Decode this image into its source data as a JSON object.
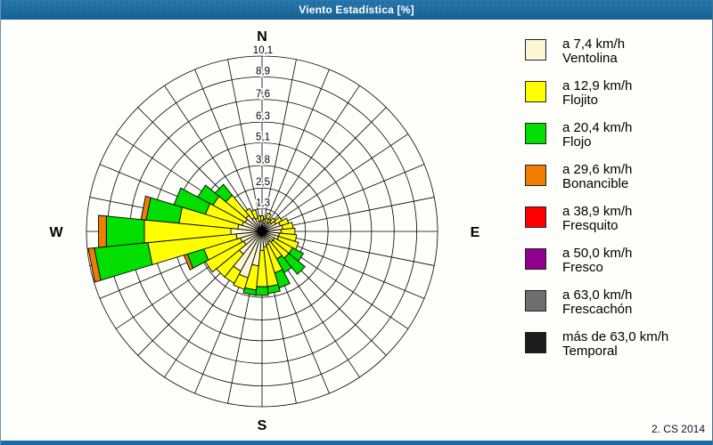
{
  "window": {
    "title": "Viento Estadística [%]"
  },
  "credit": "2. CS 2014",
  "compass": {
    "north": "N",
    "east": "E",
    "south": "S",
    "west": "W"
  },
  "legend": {
    "items": [
      {
        "speed": "a 7,4 km/h",
        "name": "Ventolina",
        "color": "#fcf6d4"
      },
      {
        "speed": "a 12,9 km/h",
        "name": "Flojito",
        "color": "#ffff00"
      },
      {
        "speed": "a 20,4 km/h",
        "name": "Flojo",
        "color": "#00df00"
      },
      {
        "speed": "a 29,6 km/h",
        "name": "Bonancible",
        "color": "#ef7d00"
      },
      {
        "speed": "a 38,9 km/h",
        "name": "Fresquito",
        "color": "#ff0000"
      },
      {
        "speed": "a 50,0 km/h",
        "name": "Fresco",
        "color": "#90008f"
      },
      {
        "speed": "a 63,0 km/h",
        "name": "Frescachón",
        "color": "#6e6e6e"
      },
      {
        "speed": "más de 63,0 km/h",
        "name": "Temporal",
        "color": "#1c1c1c"
      }
    ]
  },
  "chart_data": {
    "type": "wind-rose",
    "title": "Viento Estadística [%]",
    "units": "%",
    "sector_count": 32,
    "sector_step_deg": 11.25,
    "directions_deg": [
      0,
      11.25,
      22.5,
      33.75,
      45,
      56.25,
      67.5,
      78.75,
      90,
      101.25,
      112.5,
      123.75,
      135,
      146.25,
      157.5,
      168.75,
      180,
      191.25,
      202.5,
      213.75,
      225,
      236.25,
      247.5,
      258.75,
      270,
      281.25,
      292.5,
      303.75,
      315,
      326.25,
      337.5,
      348.75
    ],
    "rings": [
      1.3,
      2.5,
      3.8,
      5.1,
      6.3,
      7.6,
      8.9,
      10.1
    ],
    "ring_labels": [
      "1,3",
      "2,5",
      "3,8",
      "5,1",
      "6,3",
      "7,6",
      "8,9",
      "10,1"
    ],
    "rmax": 10.1,
    "grid": true,
    "legend_position": "right",
    "series": [
      {
        "name": "Ventolina",
        "color": "#fcf6d4",
        "values": [
          0.6,
          0.5,
          0.8,
          0.6,
          0.7,
          0.9,
          1.1,
          1.2,
          1.1,
          1.0,
          1.0,
          0.8,
          0.8,
          0.7,
          0.8,
          0.9,
          1.1,
          2.0,
          2.8,
          2.6,
          1.7,
          1.2,
          1.3,
          1.5,
          1.8,
          1.4,
          1.2,
          1.1,
          1.2,
          0.9,
          0.8,
          0.6
        ]
      },
      {
        "name": "Flojito",
        "color": "#ffff00",
        "values": [
          0.3,
          0.2,
          0.3,
          0.2,
          0.3,
          0.4,
          0.5,
          0.6,
          0.8,
          1.0,
          1.2,
          1.2,
          1.2,
          1.1,
          1.7,
          2.3,
          2.1,
          1.4,
          0.7,
          0.8,
          1.7,
          2.5,
          2.2,
          5.1,
          5.0,
          3.4,
          2.2,
          2.1,
          1.5,
          0.6,
          0.5,
          0.3
        ]
      },
      {
        "name": "Flojo",
        "color": "#00df00",
        "values": [
          0,
          0,
          0,
          0,
          0,
          0,
          0,
          0,
          0,
          0,
          0,
          0.7,
          1.2,
          0.9,
          0.9,
          0.4,
          0.5,
          0.3,
          0,
          0,
          0,
          0,
          1.0,
          3.1,
          2.2,
          1.9,
          1.9,
          1.0,
          0.8,
          0,
          0,
          0
        ]
      },
      {
        "name": "Bonancible",
        "color": "#ef7d00",
        "values": [
          0,
          0,
          0,
          0,
          0,
          0,
          0,
          0,
          0,
          0,
          0,
          0,
          0,
          0,
          0,
          0,
          0,
          0,
          0,
          0,
          0,
          0,
          0.2,
          0.35,
          0.45,
          0.3,
          0,
          0,
          0,
          0,
          0,
          0
        ]
      },
      {
        "name": "Fresquito",
        "color": "#ff0000",
        "values": [
          0,
          0,
          0,
          0,
          0,
          0,
          0,
          0,
          0,
          0,
          0,
          0,
          0,
          0,
          0,
          0,
          0,
          0,
          0,
          0,
          0,
          0,
          0,
          0,
          0,
          0,
          0,
          0,
          0,
          0,
          0,
          0
        ]
      },
      {
        "name": "Fresco",
        "color": "#90008f",
        "values": [
          0,
          0,
          0,
          0,
          0,
          0,
          0,
          0,
          0,
          0,
          0,
          0,
          0,
          0,
          0,
          0,
          0,
          0,
          0,
          0,
          0,
          0,
          0,
          0,
          0,
          0,
          0,
          0,
          0,
          0,
          0,
          0
        ]
      },
      {
        "name": "Frescachón",
        "color": "#6e6e6e",
        "values": [
          0,
          0,
          0,
          0,
          0,
          0,
          0,
          0,
          0,
          0,
          0,
          0,
          0,
          0,
          0,
          0,
          0,
          0,
          0,
          0,
          0,
          0,
          0,
          0,
          0,
          0,
          0,
          0,
          0,
          0,
          0,
          0
        ]
      },
      {
        "name": "Temporal",
        "color": "#1c1c1c",
        "values": [
          0,
          0,
          0,
          0,
          0,
          0,
          0,
          0,
          0,
          0,
          0,
          0,
          0,
          0,
          0,
          0,
          0,
          0,
          0,
          0,
          0,
          0,
          0,
          0,
          0,
          0,
          0,
          0,
          0,
          0,
          0,
          0
        ]
      }
    ]
  }
}
